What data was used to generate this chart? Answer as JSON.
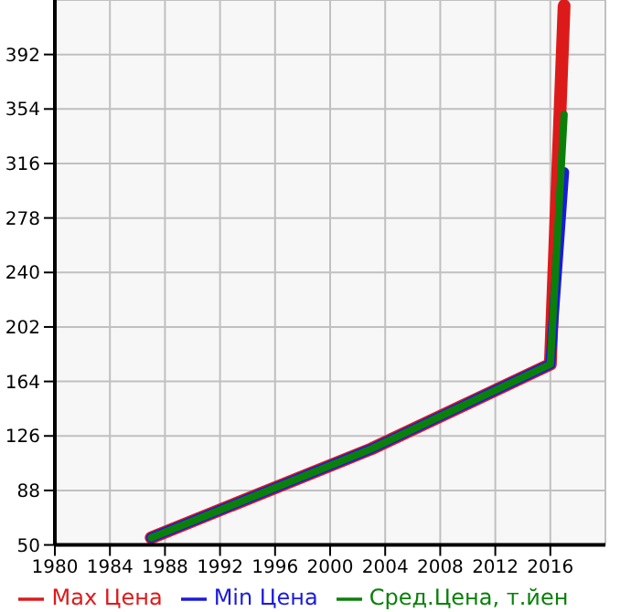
{
  "chart_data": {
    "type": "line",
    "x": [
      1987,
      2003,
      2016,
      2017
    ],
    "series": [
      {
        "name": "Max Цена",
        "color": "#dd1a1a",
        "values": [
          55,
          117,
          176,
          426
        ]
      },
      {
        "name": "Min Цена",
        "color": "#1a1add",
        "values": [
          55,
          117,
          176,
          310
        ]
      },
      {
        "name": "Сред.Цена, т.йен",
        "color": "#0a800a",
        "values": [
          55,
          117,
          176,
          350
        ]
      }
    ],
    "xlim": [
      1980,
      2020
    ],
    "xticks": [
      1980,
      1984,
      1988,
      1992,
      1996,
      2000,
      2004,
      2008,
      2012,
      2016
    ],
    "ylim": [
      50,
      430
    ],
    "yticks": [
      50,
      88,
      126,
      164,
      202,
      240,
      278,
      316,
      354,
      392
    ],
    "grid": true,
    "legend": "bottom",
    "marker": "none",
    "line_style": "solid"
  }
}
